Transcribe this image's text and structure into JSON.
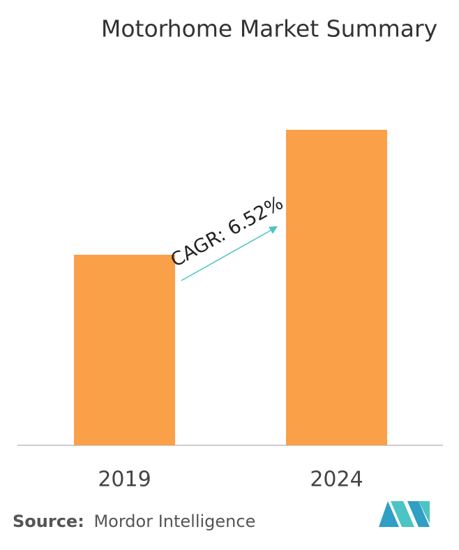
{
  "chart_data": {
    "type": "bar",
    "title": "Motorhome Market Summary",
    "categories": [
      "2019",
      "2024"
    ],
    "values": [
      60.4,
      100
    ],
    "color": "#f9a049",
    "annotation": "CAGR: 6.52%",
    "source_label": "Source:",
    "source": "Mordor Intelligence"
  }
}
